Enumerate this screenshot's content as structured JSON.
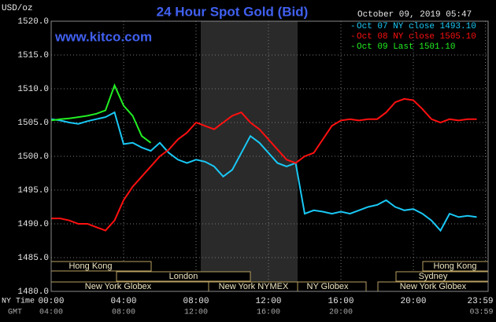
{
  "chart_data": {
    "type": "line",
    "title": "24 Hour Spot Gold (Bid)",
    "website": "www.kitco.com",
    "timestamp": "October 09, 2019 05:47",
    "y_label": "USD/oz",
    "x_label": "NY Time",
    "x2_label": "GMT",
    "x": [
      0,
      0.5,
      1,
      1.5,
      2,
      2.5,
      3,
      3.5,
      4,
      4.5,
      5,
      5.5,
      6,
      6.5,
      7,
      7.5,
      8,
      8.5,
      9,
      9.5,
      10,
      10.5,
      11,
      11.5,
      12,
      12.5,
      13,
      13.5,
      14,
      14.5,
      15,
      15.5,
      16,
      16.5,
      17,
      17.5,
      18,
      18.5,
      19,
      19.5,
      20,
      20.5,
      21,
      21.5,
      22,
      22.5,
      23,
      23.5
    ],
    "series": [
      {
        "name": "Oct 07 NY close 1493.10",
        "color": "#19c8f5",
        "values": [
          1505.5,
          1505.3,
          1505.0,
          1504.8,
          1505.2,
          1505.5,
          1505.8,
          1506.5,
          1501.8,
          1502.0,
          1501.3,
          1500.8,
          1502.0,
          1500.5,
          1499.5,
          1499.0,
          1499.5,
          1499.2,
          1498.5,
          1497.0,
          1498.0,
          1500.5,
          1503.0,
          1502.0,
          1500.5,
          1499.0,
          1498.5,
          1499.0,
          1491.5,
          1492.0,
          1491.8,
          1491.5,
          1491.8,
          1491.5,
          1492.0,
          1492.5,
          1492.8,
          1493.5,
          1492.5,
          1492.0,
          1492.2,
          1491.5,
          1490.5,
          1489.0,
          1491.5,
          1491.0,
          1491.2,
          1491.0
        ]
      },
      {
        "name": "Oct 08 NY close 1505.10",
        "color": "#ff1010",
        "values": [
          1490.8,
          1490.8,
          1490.5,
          1490.0,
          1490.0,
          1489.5,
          1489.0,
          1490.5,
          1493.5,
          1495.5,
          1497.0,
          1498.5,
          1500.0,
          1501.0,
          1502.5,
          1503.5,
          1505.0,
          1504.5,
          1504.0,
          1505.0,
          1506.0,
          1506.5,
          1505.0,
          1504.0,
          1502.5,
          1501.0,
          1499.5,
          1499.0,
          1500.0,
          1500.5,
          1502.5,
          1504.5,
          1505.3,
          1505.5,
          1505.3,
          1505.5,
          1505.5,
          1506.5,
          1508.0,
          1508.5,
          1508.3,
          1507.0,
          1505.5,
          1505.0,
          1505.5,
          1505.3,
          1505.5,
          1505.5
        ]
      },
      {
        "name": "Oct 09 Last 1501.10",
        "color": "#22ee22",
        "values": [
          1505.3,
          1505.5,
          1505.6,
          1505.8,
          1506.0,
          1506.3,
          1506.8,
          1510.5,
          1507.5,
          1506.0,
          1503.0,
          1502.0,
          null,
          null,
          null,
          null,
          null,
          null,
          null,
          null,
          null,
          null,
          null,
          null,
          null,
          null,
          null,
          null,
          null,
          null,
          null,
          null,
          null,
          null,
          null,
          null,
          null,
          null,
          null,
          null,
          null,
          null,
          null,
          null,
          null,
          null,
          null,
          null
        ]
      }
    ],
    "xlim": [
      0,
      24
    ],
    "xticks": [
      {
        "value": 0,
        "label": "00:00"
      },
      {
        "value": 4,
        "label": "04:00"
      },
      {
        "value": 8,
        "label": "08:00"
      },
      {
        "value": 12,
        "label": "12:00"
      },
      {
        "value": 16,
        "label": "16:00"
      },
      {
        "value": 20,
        "label": "20:00"
      },
      {
        "value": 23.98,
        "label": "23:59"
      }
    ],
    "x2ticks": [
      {
        "value": 0,
        "label": "04:00"
      },
      {
        "value": 4,
        "label": "08:00"
      },
      {
        "value": 8,
        "label": "12:00"
      },
      {
        "value": 12,
        "label": "16:00"
      },
      {
        "value": 16,
        "label": "20:00"
      },
      {
        "value": 23.98,
        "label": "03:59"
      }
    ],
    "ylim": [
      1480,
      1520
    ],
    "yticks": [
      {
        "value": 1480,
        "label": "1480.0"
      },
      {
        "value": 1485,
        "label": "1485.0"
      },
      {
        "value": 1490,
        "label": "1490.0"
      },
      {
        "value": 1495,
        "label": "1495.0"
      },
      {
        "value": 1500,
        "label": "1500.0"
      },
      {
        "value": 1505,
        "label": "1505.0"
      },
      {
        "value": 1510,
        "label": "1510.0"
      },
      {
        "value": 1515,
        "label": "1515.0"
      },
      {
        "value": 1520,
        "label": "1520.0"
      }
    ],
    "grid": true,
    "sessions": [
      "Hong Kong",
      "London",
      "New York Globex",
      "New York NYMEX",
      "NY Globex",
      "Hong Kong",
      "Sydney",
      "New York Globex"
    ]
  }
}
